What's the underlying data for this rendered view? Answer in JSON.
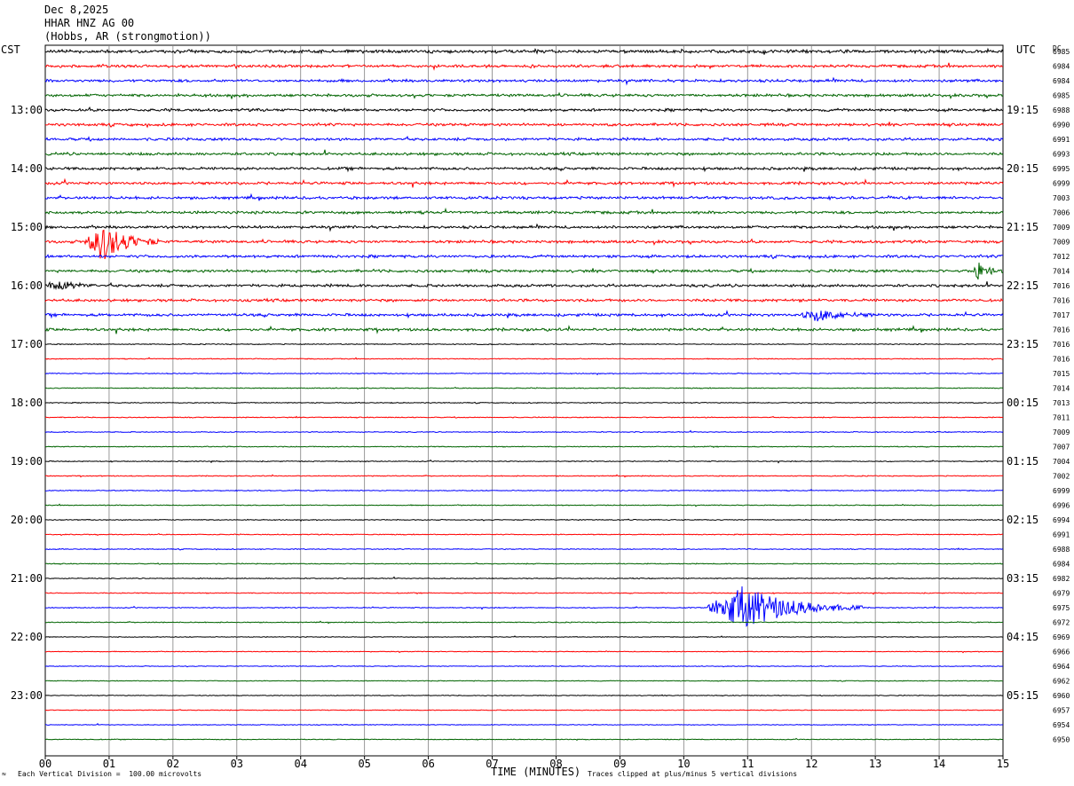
{
  "header": {
    "date": "Dec 8,2025",
    "station": "HHAR HNZ AG 00",
    "location": "(Hobbs, AR (strongmotion))"
  },
  "left_zone": "CST",
  "right_zone": "UTC",
  "dc_header": "DC",
  "footer": {
    "scale": "Each Vertical Division =  100.00 microvolts",
    "clip": "Traces clipped at plus/minus 5 vertical divisions",
    "corner_mark": "≈"
  },
  "colors": {
    "trace_cycle": [
      "#000000",
      "#ff0000",
      "#0000ff",
      "#006400"
    ],
    "grid": "#808080"
  },
  "chart_data": {
    "type": "line",
    "title": "HHAR HNZ AG 00",
    "xlabel": "TIME (MINUTES)",
    "ylabel": "",
    "xlim": [
      0,
      15
    ],
    "x_ticks": [
      "00",
      "01",
      "02",
      "03",
      "04",
      "05",
      "06",
      "07",
      "08",
      "09",
      "10",
      "11",
      "12",
      "13",
      "14",
      "15"
    ],
    "left_hour_labels": [
      "13:00",
      "14:00",
      "15:00",
      "16:00",
      "17:00",
      "18:00",
      "19:00",
      "20:00",
      "21:00",
      "22:00",
      "23:00"
    ],
    "right_hour_labels": [
      "19:15",
      "20:15",
      "21:15",
      "22:15",
      "23:15",
      "00:15",
      "01:15",
      "02:15",
      "03:15",
      "04:15",
      "05:15"
    ],
    "dc_offsets": [
      "6985",
      "6984",
      "6984",
      "6985",
      "6988",
      "6990",
      "6991",
      "6993",
      "6995",
      "6999",
      "7003",
      "7006",
      "7009",
      "7009",
      "7012",
      "7014",
      "7016",
      "7016",
      "7017",
      "7016",
      "7016",
      "7016",
      "7015",
      "7014",
      "7013",
      "7011",
      "7009",
      "7007",
      "7004",
      "7002",
      "6999",
      "6996",
      "6994",
      "6991",
      "6988",
      "6984",
      "6982",
      "6979",
      "6975",
      "6972",
      "6969",
      "6966",
      "6964",
      "6962",
      "6960",
      "6957",
      "6954",
      "6950"
    ],
    "rows": 48,
    "minutes_per_row": 15,
    "noise_level": [
      0.35,
      0.3,
      0.3,
      0.3,
      0.3,
      0.3,
      0.3,
      0.3,
      0.3,
      0.3,
      0.3,
      0.3,
      0.3,
      0.3,
      0.3,
      0.3,
      0.3,
      0.3,
      0.3,
      0.3,
      0.1,
      0.1,
      0.1,
      0.1,
      0.1,
      0.1,
      0.1,
      0.1,
      0.1,
      0.1,
      0.1,
      0.1,
      0.1,
      0.1,
      0.1,
      0.1,
      0.1,
      0.1,
      0.1,
      0.1,
      0.08,
      0.08,
      0.08,
      0.08,
      0.08,
      0.08,
      0.08,
      0.08
    ],
    "events": [
      {
        "row": 13,
        "start_min": 0.6,
        "end_min": 1.8,
        "amplitude": 2.6
      },
      {
        "row": 15,
        "start_min": 14.5,
        "end_min": 15.0,
        "amplitude": 1.2
      },
      {
        "row": 16,
        "start_min": 0.0,
        "end_min": 0.8,
        "amplitude": 0.8
      },
      {
        "row": 18,
        "start_min": 11.8,
        "end_min": 13.0,
        "amplitude": 0.8
      },
      {
        "row": 38,
        "start_min": 10.3,
        "end_min": 12.8,
        "amplitude": 3.0
      }
    ]
  }
}
